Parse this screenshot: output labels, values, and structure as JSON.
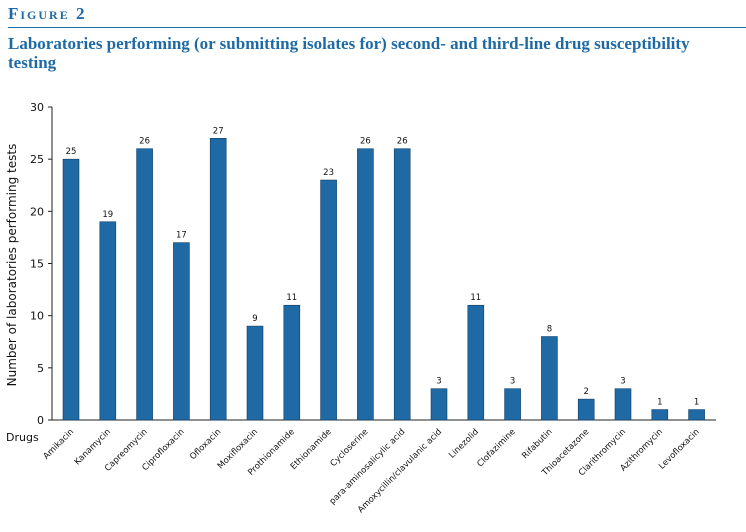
{
  "chart_data": {
    "type": "bar",
    "figure_label": "Figure 2",
    "title": "Laboratories performing (or submitting isolates for) second- and third-line drug susceptibility testing",
    "y_label": "Number of laboratories performing tests",
    "x_label": "Drugs",
    "categories": [
      "Amikacin",
      "Kanamycin",
      "Capreomycin",
      "Ciprofloxacin",
      "Ofloxacin",
      "Moxifloxacin",
      "Prothionamide",
      "Ethionamide",
      "Cycloserine",
      "para-aminosalicylic acid",
      "Amoxycillin/clavulanic acid",
      "Linezolid",
      "Clofazimine",
      "Rifabutin",
      "Thioacetazone",
      "Clarithromycin",
      "Azithromycin",
      "Levofloxacin"
    ],
    "values": [
      25,
      19,
      26,
      17,
      27,
      9,
      11,
      23,
      26,
      26,
      3,
      11,
      3,
      8,
      2,
      3,
      1,
      1
    ],
    "color": "#1f6aa5",
    "ylim": [
      0,
      30
    ],
    "yticks": [
      0,
      5,
      10,
      15,
      20,
      25,
      30
    ],
    "grid": false
  }
}
